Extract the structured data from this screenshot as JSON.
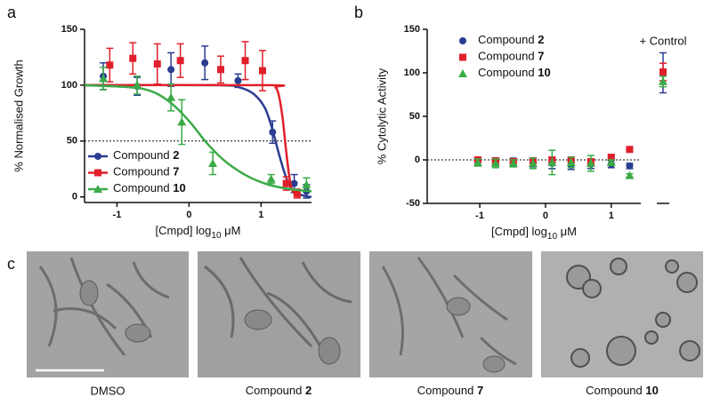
{
  "chart_data": [
    {
      "type": "scatter",
      "panel_label": "a",
      "y_label": "% Normalised Growth",
      "x_label": "[Cmpd] log10 μM",
      "xlim": [
        -1.45,
        1.7
      ],
      "xticks": [
        -1,
        0,
        1
      ],
      "ylim": [
        -5,
        150
      ],
      "yticks": [
        0,
        50,
        100,
        150
      ],
      "reference_line": 50,
      "legend": "bottom-left",
      "series": [
        {
          "name": "Compound 2",
          "color": "#2b3d92",
          "marker": "circle",
          "x": [
            -1.19,
            -0.72,
            -0.25,
            0.22,
            0.68,
            1.16,
            1.46,
            1.63
          ],
          "values": [
            108,
            99,
            114,
            120,
            104,
            58,
            12,
            5
          ],
          "errors": [
            12,
            8,
            15,
            15,
            6,
            10,
            8,
            6
          ],
          "fit": {
            "x": [
              -1.45,
              0.4,
              0.7,
              0.9,
              1.05,
              1.15,
              1.25,
              1.35,
              1.45,
              1.6,
              1.7
            ],
            "y": [
              100,
              100,
              98,
              92,
              80,
              62,
              38,
              17,
              5,
              1,
              0
            ]
          }
        },
        {
          "name": "Compound 7",
          "color": "#e01f2a",
          "marker": "square",
          "x": [
            -1.1,
            -0.78,
            -0.44,
            -0.12,
            0.44,
            0.78,
            1.02,
            1.35,
            1.5
          ],
          "values": [
            118,
            124,
            119,
            122,
            114,
            122,
            113,
            12,
            3
          ],
          "errors": [
            15,
            14,
            18,
            15,
            12,
            17,
            18,
            6,
            4
          ],
          "fit": {
            "x": [
              -1.45,
              1.1,
              1.2,
              1.25,
              1.3,
              1.35,
              1.4,
              1.45,
              1.55
            ],
            "y": [
              100,
              100,
              98,
              90,
              70,
              40,
              15,
              4,
              0
            ]
          }
        },
        {
          "name": "Compound 10",
          "color": "#3aab47",
          "marker": "triangle",
          "x": [
            -1.19,
            -0.72,
            -0.25,
            -0.1,
            0.33,
            1.14,
            1.63
          ],
          "values": [
            106,
            100,
            89,
            67,
            30,
            16,
            11
          ],
          "errors": [
            10,
            8,
            12,
            20,
            10,
            4,
            6
          ],
          "fit": {
            "x": [
              -1.45,
              -0.8,
              -0.5,
              -0.25,
              0,
              0.25,
              0.5,
              0.8,
              1.1,
              1.4,
              1.7
            ],
            "y": [
              100,
              98,
              94,
              84,
              68,
              48,
              32,
              19,
              11,
              7,
              5
            ]
          }
        }
      ]
    },
    {
      "type": "scatter",
      "panel_label": "b",
      "y_label": "% Cytolytic Activity",
      "x_label": "[Cmpd] log10 μM",
      "control_label": "+ Control",
      "xlim": [
        -1.8,
        1.45
      ],
      "xticks": [
        -1,
        0,
        1
      ],
      "ylim": [
        -50,
        150
      ],
      "yticks": [
        -50,
        0,
        50,
        100,
        150
      ],
      "reference_line": 0,
      "legend": "top-left",
      "x": [
        -1.03,
        -0.76,
        -0.49,
        -0.19,
        0.1,
        0.39,
        0.69,
        1.0,
        1.28
      ],
      "series": [
        {
          "name": "Compound 2",
          "color": "#2b3d92",
          "marker": "circle",
          "values": [
            -2,
            -2,
            -3,
            -3,
            -4,
            -6,
            -5,
            -5,
            -7
          ],
          "errors": [
            5,
            4,
            5,
            5,
            6,
            5,
            5,
            4,
            3
          ],
          "control": 100,
          "control_error": 23
        },
        {
          "name": "Compound 7",
          "color": "#e01f2a",
          "marker": "square",
          "values": [
            0,
            -1,
            -2,
            -1,
            0,
            0,
            -2,
            3,
            12
          ],
          "errors": [
            3,
            3,
            3,
            3,
            3,
            3,
            3,
            2,
            2
          ],
          "control": 101,
          "control_error": 10
        },
        {
          "name": "Compound 10",
          "color": "#3aab47",
          "marker": "triangle",
          "values": [
            -3,
            -4,
            -4,
            -4,
            -3,
            -3,
            -4,
            -3,
            -18
          ],
          "errors": [
            4,
            5,
            4,
            6,
            14,
            6,
            9,
            3,
            2
          ],
          "control": 90,
          "control_error": 6
        }
      ]
    }
  ],
  "images": {
    "panel_label": "c",
    "captions": [
      "DMSO",
      "Compound 2",
      "Compound 7",
      "Compound 10"
    ]
  }
}
